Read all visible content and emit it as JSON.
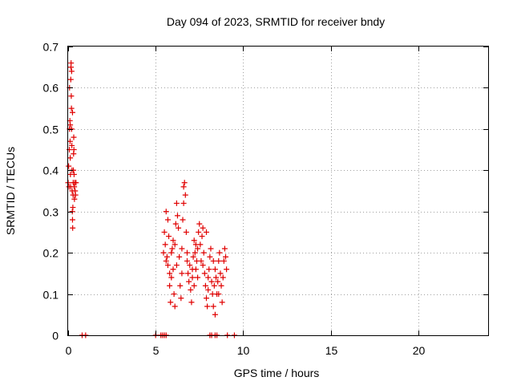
{
  "chart_data": {
    "type": "scatter",
    "title": "Day 094 of 2023, SRMTID for receiver bndy",
    "xlabel": "GPS time / hours",
    "ylabel": "SRMTID / TECUs",
    "xlim": [
      0,
      24
    ],
    "ylim": [
      0,
      0.7
    ],
    "xticks": [
      "0",
      "5",
      "10",
      "15",
      "20"
    ],
    "yticks": [
      "0",
      "0.1",
      "0.2",
      "0.3",
      "0.4",
      "0.5",
      "0.6",
      "0.7"
    ],
    "grid": true,
    "marker": "+",
    "color": "#e00000",
    "series": [
      {
        "points": [
          [
            0.0,
            0.37
          ],
          [
            0.03,
            0.41
          ],
          [
            0.05,
            0.36
          ],
          [
            0.07,
            0.45
          ],
          [
            0.08,
            0.5
          ],
          [
            0.1,
            0.52
          ],
          [
            0.11,
            0.47
          ],
          [
            0.12,
            0.43
          ],
          [
            0.13,
            0.39
          ],
          [
            0.14,
            0.36
          ],
          [
            0.15,
            0.62
          ],
          [
            0.16,
            0.65
          ],
          [
            0.17,
            0.66
          ],
          [
            0.18,
            0.58
          ],
          [
            0.19,
            0.55
          ],
          [
            0.2,
            0.5
          ],
          [
            0.21,
            0.46
          ],
          [
            0.22,
            0.4
          ],
          [
            0.23,
            0.35
          ],
          [
            0.24,
            0.3
          ],
          [
            0.25,
            0.28
          ],
          [
            0.26,
            0.26
          ],
          [
            0.27,
            0.31
          ],
          [
            0.28,
            0.34
          ],
          [
            0.29,
            0.37
          ],
          [
            0.3,
            0.4
          ],
          [
            0.31,
            0.44
          ],
          [
            0.32,
            0.48
          ],
          [
            0.33,
            0.45
          ],
          [
            0.34,
            0.39
          ],
          [
            0.35,
            0.36
          ],
          [
            0.36,
            0.33
          ],
          [
            0.38,
            0.37
          ],
          [
            0.4,
            0.35
          ],
          [
            0.42,
            0.34
          ],
          [
            0.45,
            0.37
          ],
          [
            0.08,
            0.6
          ],
          [
            0.12,
            0.51
          ],
          [
            0.2,
            0.64
          ],
          [
            0.25,
            0.54
          ],
          [
            5.45,
            0.2
          ],
          [
            5.5,
            0.25
          ],
          [
            5.55,
            0.22
          ],
          [
            5.6,
            0.3
          ],
          [
            5.65,
            0.19
          ],
          [
            5.7,
            0.17
          ],
          [
            5.75,
            0.24
          ],
          [
            5.8,
            0.12
          ],
          [
            5.85,
            0.08
          ],
          [
            5.9,
            0.14
          ],
          [
            5.95,
            0.21
          ],
          [
            6.0,
            0.16
          ],
          [
            6.05,
            0.1
          ],
          [
            6.1,
            0.22
          ],
          [
            6.15,
            0.27
          ],
          [
            6.2,
            0.32
          ],
          [
            6.25,
            0.29
          ],
          [
            6.3,
            0.26
          ],
          [
            6.35,
            0.19
          ],
          [
            6.4,
            0.12
          ],
          [
            6.45,
            0.09
          ],
          [
            6.5,
            0.21
          ],
          [
            6.55,
            0.28
          ],
          [
            6.6,
            0.36
          ],
          [
            6.65,
            0.37
          ],
          [
            6.7,
            0.34
          ],
          [
            6.75,
            0.25
          ],
          [
            6.8,
            0.2
          ],
          [
            6.85,
            0.15
          ],
          [
            6.9,
            0.13
          ],
          [
            6.95,
            0.17
          ],
          [
            7.0,
            0.11
          ],
          [
            7.05,
            0.08
          ],
          [
            7.1,
            0.14
          ],
          [
            7.15,
            0.19
          ],
          [
            7.2,
            0.23
          ],
          [
            7.25,
            0.2
          ],
          [
            7.3,
            0.16
          ],
          [
            7.35,
            0.18
          ],
          [
            7.4,
            0.21
          ],
          [
            7.45,
            0.25
          ],
          [
            7.5,
            0.27
          ],
          [
            7.55,
            0.22
          ],
          [
            7.6,
            0.18
          ],
          [
            7.65,
            0.24
          ],
          [
            7.7,
            0.26
          ],
          [
            7.75,
            0.2
          ],
          [
            7.8,
            0.15
          ],
          [
            7.85,
            0.12
          ],
          [
            7.9,
            0.09
          ],
          [
            7.95,
            0.07
          ],
          [
            8.0,
            0.11
          ],
          [
            8.05,
            0.16
          ],
          [
            8.1,
            0.19
          ],
          [
            8.15,
            0.21
          ],
          [
            8.2,
            0.13
          ],
          [
            8.25,
            0.1
          ],
          [
            8.3,
            0.07
          ],
          [
            8.35,
            0.12
          ],
          [
            8.4,
            0.16
          ],
          [
            8.45,
            0.14
          ],
          [
            8.5,
            0.1
          ],
          [
            8.55,
            0.13
          ],
          [
            8.6,
            0.18
          ],
          [
            8.65,
            0.2
          ],
          [
            8.7,
            0.15
          ],
          [
            8.75,
            0.12
          ],
          [
            8.8,
            0.08
          ],
          [
            8.85,
            0.14
          ],
          [
            8.9,
            0.18
          ],
          [
            8.95,
            0.21
          ],
          [
            9.0,
            0.19
          ],
          [
            9.05,
            0.16
          ],
          [
            5.6,
            0.18
          ],
          [
            5.9,
            0.2
          ],
          [
            6.2,
            0.17
          ],
          [
            6.5,
            0.15
          ],
          [
            6.8,
            0.18
          ],
          [
            7.1,
            0.16
          ],
          [
            7.4,
            0.14
          ],
          [
            7.7,
            0.17
          ],
          [
            8.0,
            0.14
          ],
          [
            8.3,
            0.18
          ],
          [
            5.7,
            0.28
          ],
          [
            6.0,
            0.23
          ],
          [
            6.6,
            0.32
          ],
          [
            7.3,
            0.22
          ],
          [
            7.9,
            0.25
          ],
          [
            8.4,
            0.05
          ],
          [
            8.6,
            0.1
          ],
          [
            6.1,
            0.07
          ],
          [
            7.2,
            0.12
          ],
          [
            5.8,
            0.15
          ],
          [
            0.8,
            0.0
          ],
          [
            1.0,
            0.0
          ],
          [
            5.0,
            0.0
          ],
          [
            5.3,
            0.0
          ],
          [
            5.4,
            0.0
          ],
          [
            5.5,
            0.0
          ],
          [
            5.6,
            0.0
          ],
          [
            8.1,
            0.0
          ],
          [
            8.2,
            0.0
          ],
          [
            8.4,
            0.0
          ],
          [
            8.5,
            0.0
          ],
          [
            9.1,
            0.0
          ],
          [
            9.5,
            0.0
          ]
        ]
      }
    ]
  }
}
